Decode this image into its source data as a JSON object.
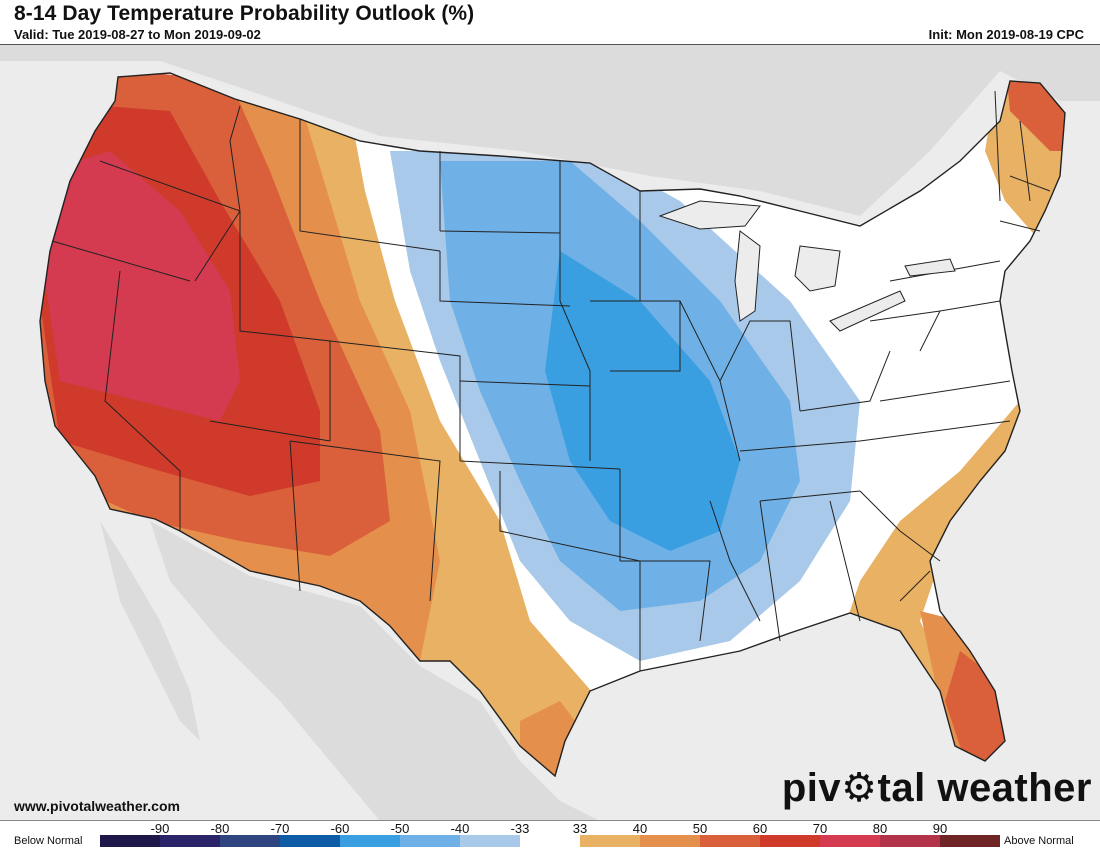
{
  "header": {
    "title": "8-14 Day Temperature Probability Outlook (%)",
    "valid": "Valid: Tue 2019-08-27 to Mon 2019-09-02",
    "init": "Init: Mon 2019-08-19 CPC"
  },
  "footer": {
    "site_url": "www.pivotalweather.com",
    "brand_prefix": "piv",
    "brand_suffix": "tal weather"
  },
  "legend": {
    "below_label": "Below Normal",
    "above_label": "Above Normal",
    "ticks": [
      "-90",
      "-80",
      "-70",
      "-60",
      "-50",
      "-40",
      "-33",
      "33",
      "40",
      "50",
      "60",
      "70",
      "80",
      "90"
    ],
    "colors": [
      "#1d1849",
      "#2b2469",
      "#2f4580",
      "#0e5ca6",
      "#3a9fe0",
      "#6fb0e6",
      "#a9c9ea",
      "#ffffff",
      "#e9b163",
      "#e58f4c",
      "#d9603b",
      "#cf3a2b",
      "#d43a50",
      "#b3334a",
      "#6f2525"
    ]
  },
  "map": {
    "region": "Contiguous United States",
    "colors": {
      "land": "#ffffff",
      "ocean_and_nonus": "#e6e6e6",
      "above_40": "#e9b163",
      "above_50": "#e58f4c",
      "above_60": "#d9603b",
      "above_70": "#cf3a2b",
      "above_80": "#d43a50",
      "below_33": "#a9c9ea",
      "below_40": "#6fb0e6",
      "below_50": "#3a9fe0"
    }
  }
}
